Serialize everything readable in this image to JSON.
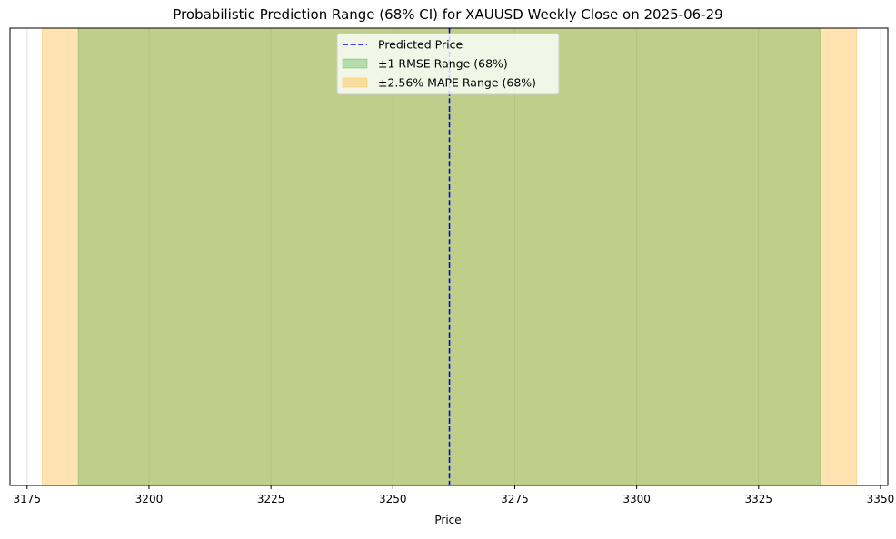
{
  "chart_data": {
    "type": "area",
    "title": "Probabilistic Prediction Range (68% CI) for XAUUSD Weekly Close on 2025-06-29",
    "xlabel": "Price",
    "ylabel": "",
    "xlim": [
      3171.5,
      3351.5
    ],
    "xticks": [
      3175,
      3200,
      3225,
      3250,
      3275,
      3300,
      3325,
      3350
    ],
    "x_grid": true,
    "y_ticks_visible": false,
    "predicted_price": 3261.6,
    "series": [
      {
        "name": "±2.56% MAPE Range (68%)",
        "kind": "range",
        "low": 3178.1,
        "high": 3345.1,
        "color": "#ffa500",
        "alpha": 0.3
      },
      {
        "name": "±1 RMSE Range (68%)",
        "kind": "range",
        "low": 3185.5,
        "high": 3337.6,
        "color": "#2ca02c",
        "alpha": 0.3
      },
      {
        "name": "Predicted Price",
        "kind": "vline",
        "x": 3261.6,
        "color": "#0000ff",
        "style": "dashed"
      }
    ],
    "legend": {
      "placement": "upper center",
      "entries": [
        {
          "label": "Predicted Price",
          "kind": "line",
          "color": "#0000ff"
        },
        {
          "label": "±1 RMSE Range (68%)",
          "kind": "patch",
          "color": "#2ca02c"
        },
        {
          "label": "±2.56% MAPE Range (68%)",
          "kind": "patch",
          "color": "#ffa500"
        }
      ]
    }
  }
}
